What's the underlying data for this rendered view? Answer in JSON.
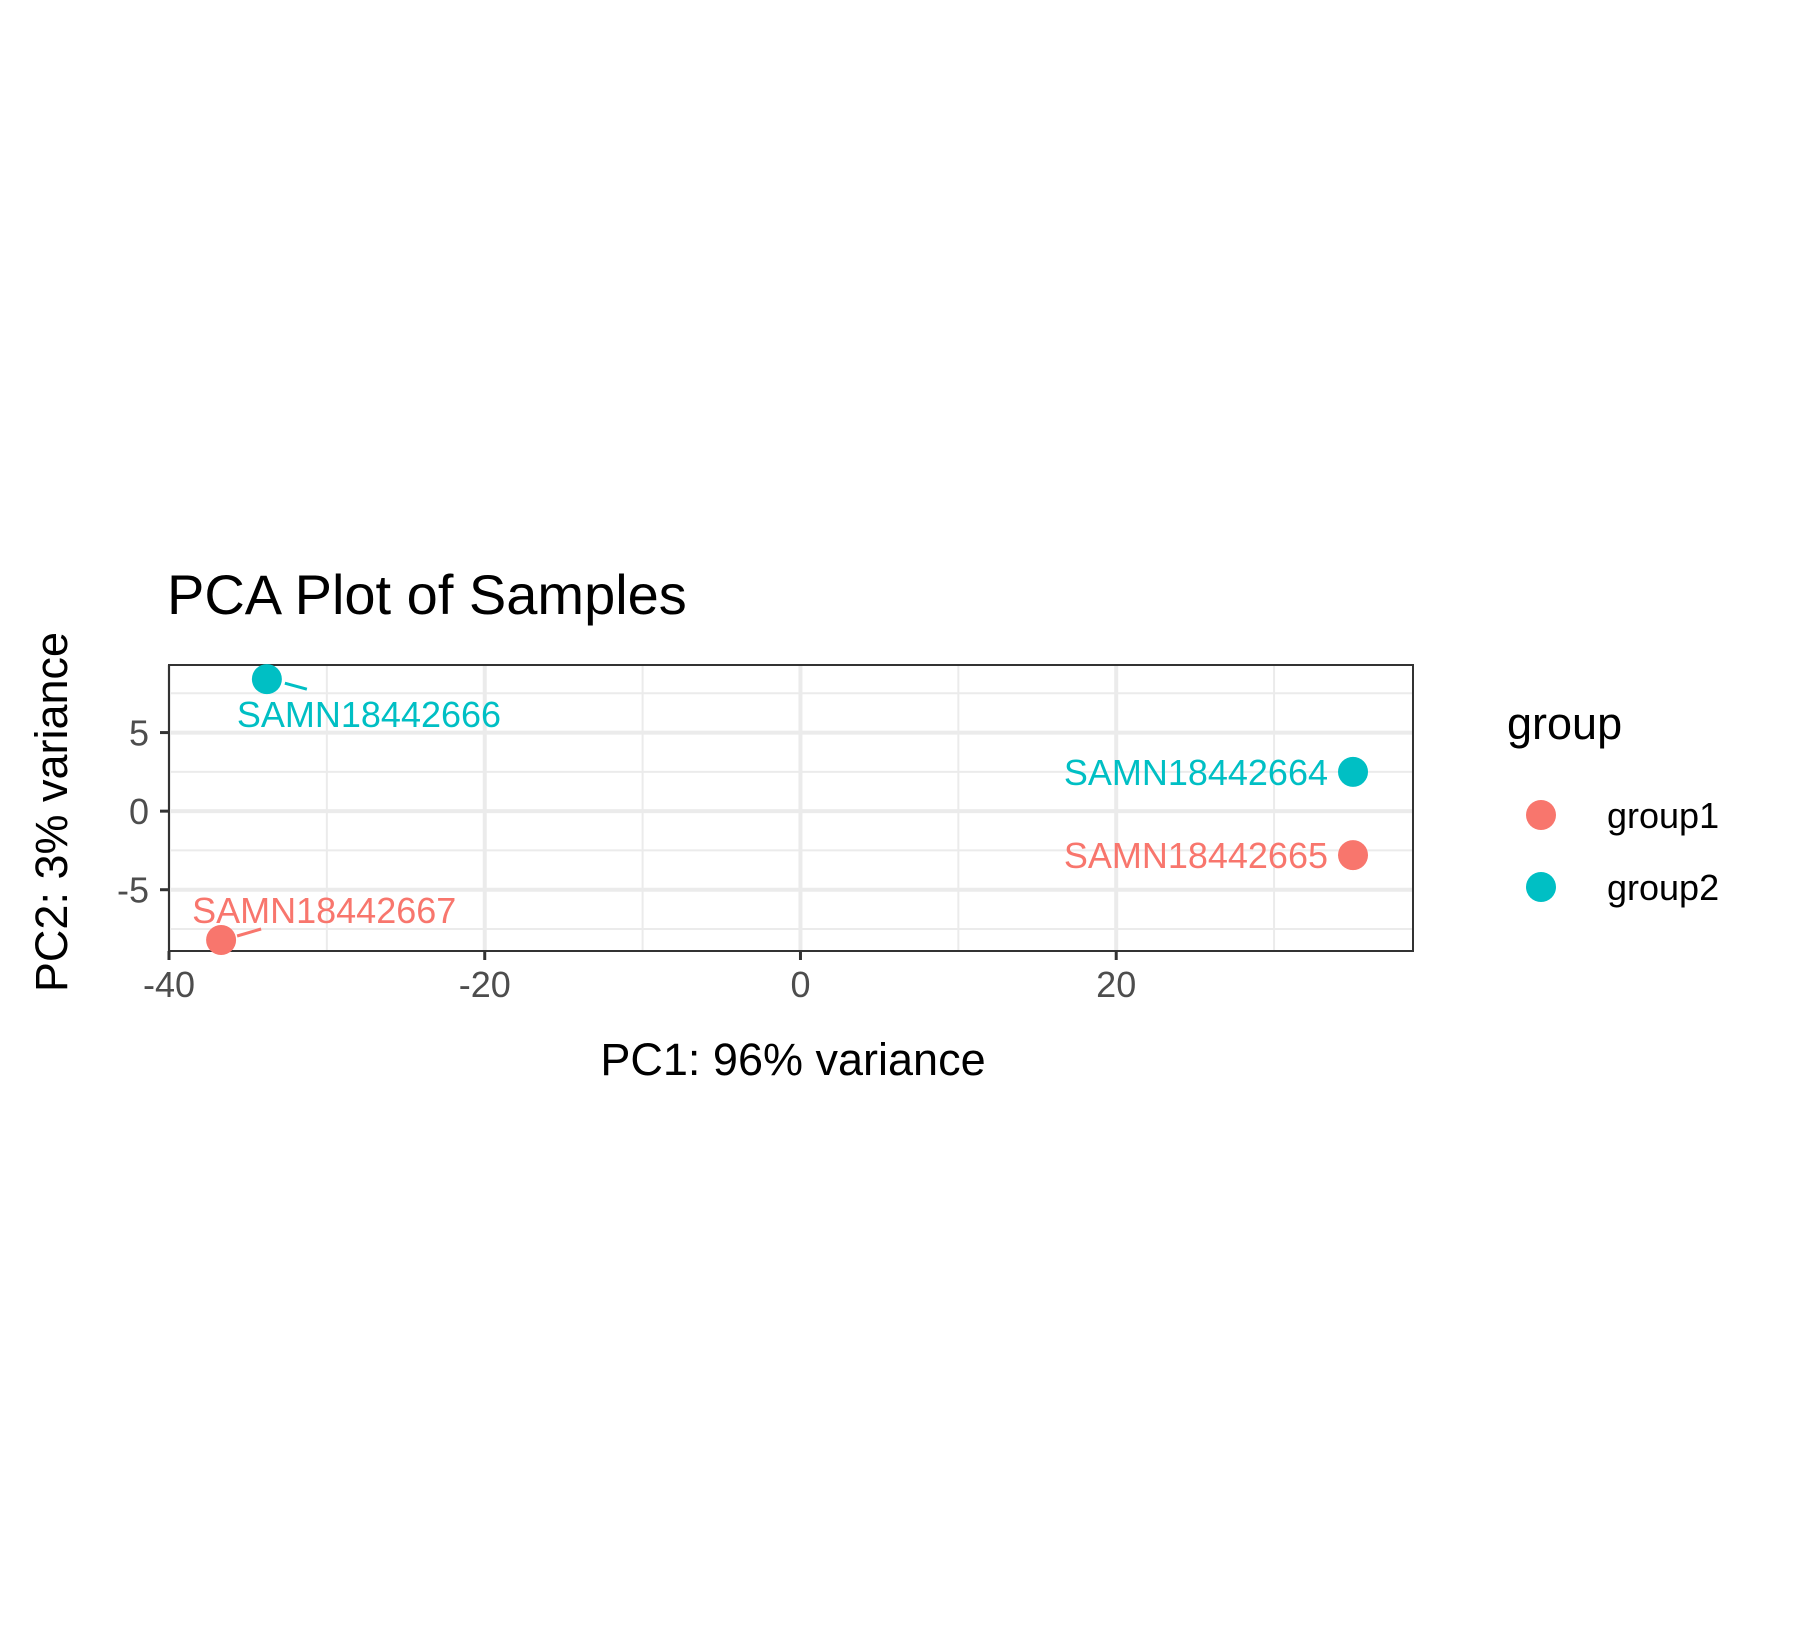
{
  "chart_data": {
    "type": "scatter",
    "title": "PCA Plot of Samples",
    "xlabel": "PC1: 96% variance",
    "ylabel": "PC2: 3% variance",
    "xlim": [
      -40,
      38.8
    ],
    "ylim": [
      -8.9,
      9.3
    ],
    "x_ticks": [
      -40,
      -20,
      0,
      20
    ],
    "y_ticks": [
      -5,
      0,
      5
    ],
    "x_tick_labels": [
      "-40",
      "-20",
      "0",
      "20"
    ],
    "y_tick_labels": [
      "-5",
      "0",
      "5"
    ],
    "grid": true,
    "legend": {
      "title": "group",
      "position": "right"
    },
    "series": [
      {
        "name": "group1",
        "color": "#f8766d",
        "points": [
          {
            "x": 35.0,
            "y": -2.8,
            "label": "SAMN18442665"
          },
          {
            "x": -36.7,
            "y": -8.2,
            "label": "SAMN18442667"
          }
        ]
      },
      {
        "name": "group2",
        "color": "#00bfc4",
        "points": [
          {
            "x": 35.0,
            "y": 2.5,
            "label": "SAMN18442664"
          },
          {
            "x": -33.8,
            "y": 8.4,
            "label": "SAMN18442666"
          }
        ]
      }
    ]
  }
}
